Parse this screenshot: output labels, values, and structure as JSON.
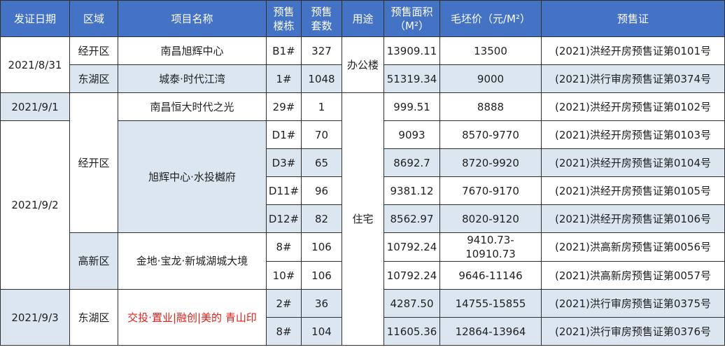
{
  "headers": {
    "date": "发证日期",
    "district": "区域",
    "project": "项目名称",
    "building": [
      "预售",
      "楼栋"
    ],
    "units": [
      "预售",
      "套数"
    ],
    "usage": "用途",
    "area": [
      "预售面积",
      "（M²）"
    ],
    "price": "毛坯价（元/M²）",
    "license": "预售证"
  },
  "groups": {
    "date_0831": "2021/8/31",
    "date_0901": "2021/9/1",
    "date_0902": "2021/9/2",
    "date_0903": "2021/9/3",
    "district_jingkai": "经开区",
    "district_donghu": "东湖区",
    "district_jingkai_2": "经开区",
    "district_gaoxin": "高新区",
    "district_donghu_2": "东湖区",
    "usage_office": "办公楼",
    "usage_residential": "住宅",
    "project_xuhui_shuitou": "旭辉中心·水投樾府",
    "project_jindi": "金地·宝龙·新城湖城大境",
    "project_qingshanyin": "交投·置业|融创|美的 青山印"
  },
  "rows": [
    {
      "project": "南昌旭辉中心",
      "building": "B1#",
      "units": "327",
      "area": "13909.11",
      "price": "13500",
      "license": "(2021)洪经开房预售证第0101号"
    },
    {
      "project": "城泰·时代江湾",
      "building": "1#",
      "units": "1048",
      "area": "51319.34",
      "price": "9000",
      "license": "(2021)洪行审房预售证第0374号"
    },
    {
      "project": "南昌恒大时代之光",
      "building": "29#",
      "units": "1",
      "area": "999.51",
      "price": "8888",
      "license": "(2021)洪经开房预售证第0102号"
    },
    {
      "building": "D1#",
      "units": "70",
      "area": "9093",
      "price": "8570-9770",
      "license": "(2021)洪经开房预售证第0103号"
    },
    {
      "building": "D3#",
      "units": "65",
      "area": "8692.7",
      "price": "8720-9920",
      "license": "(2021)洪经开房预售证第0104号"
    },
    {
      "building": "D11#",
      "units": "96",
      "area": "9381.12",
      "price": "7670-9170",
      "license": "(2021)洪经开房预售证第0105号"
    },
    {
      "building": "D12#",
      "units": "82",
      "area": "8562.97",
      "price": "8020-9120",
      "license": "(2021)洪经开房预售证第0106号"
    },
    {
      "building": "8#",
      "units": "106",
      "area": "10792.24",
      "price_lines": [
        "9410.73-",
        "10910.73"
      ],
      "license": "(2021)洪高新房预售证第0056号"
    },
    {
      "building": "10#",
      "units": "106",
      "area": "10792.24",
      "price": "9646-11146",
      "license": "(2021)洪高新房预售证第0057号"
    },
    {
      "building": "2#",
      "units": "36",
      "area": "4287.50",
      "price": "14755-15855",
      "license": "(2021)洪行审房预售证第0375号"
    },
    {
      "building": "8#",
      "units": "104",
      "area": "11605.36",
      "price": "12864-13964",
      "license": "(2021)洪行审房预售证第0376号"
    }
  ]
}
